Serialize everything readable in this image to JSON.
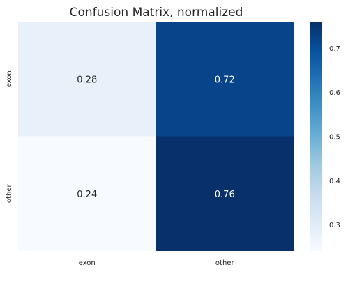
{
  "chart_data": {
    "type": "heatmap",
    "title": "Confusion Matrix, normalized",
    "xlabel": "",
    "ylabel": "",
    "x_categories": [
      "exon",
      "other"
    ],
    "y_categories": [
      "exon",
      "other"
    ],
    "values": [
      [
        0.28,
        0.72
      ],
      [
        0.24,
        0.76
      ]
    ],
    "value_labels": [
      [
        "0.28",
        "0.72"
      ],
      [
        "0.24",
        "0.76"
      ]
    ],
    "colormap": "Blues",
    "colorbar": {
      "range": [
        0.24,
        0.76
      ],
      "ticks": [
        0.3,
        0.4,
        0.5,
        0.6,
        0.7
      ],
      "tick_labels": [
        "0.3",
        "0.4",
        "0.5",
        "0.6",
        "0.7"
      ]
    }
  }
}
